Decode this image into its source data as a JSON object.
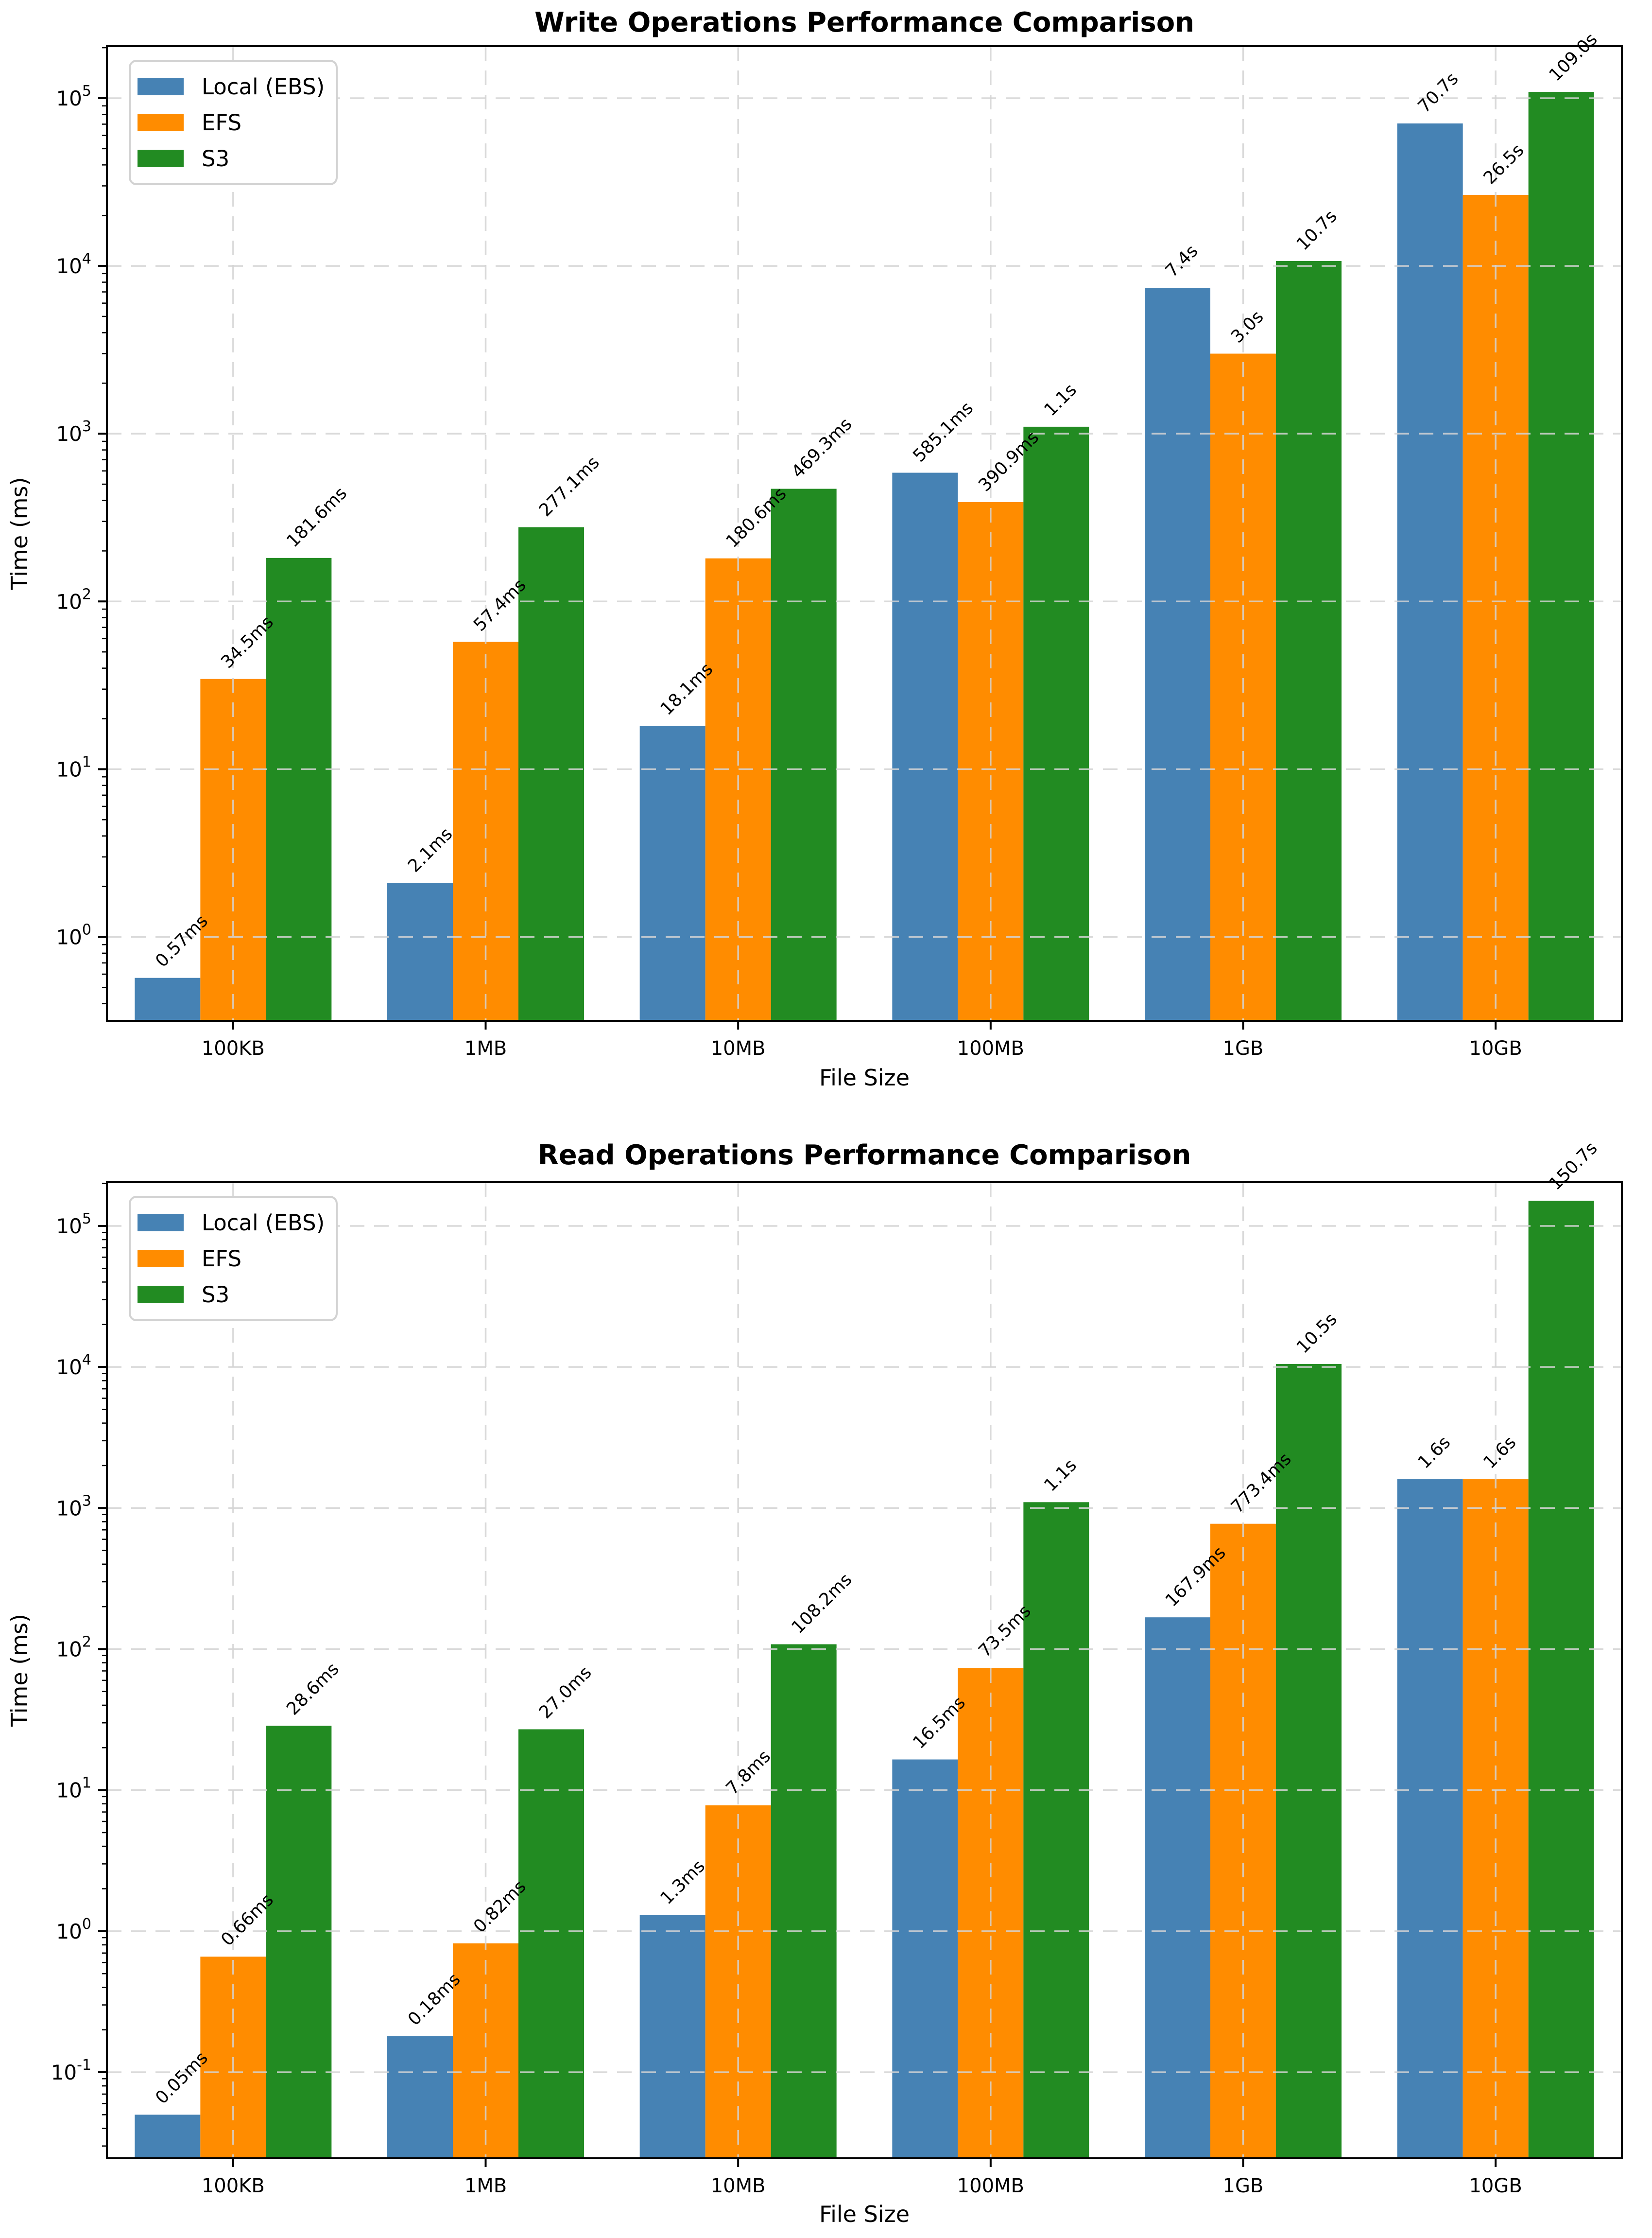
{
  "figure": {
    "background": "#ffffff"
  },
  "chart_data": [
    {
      "type": "bar",
      "title": "Write Operations Performance Comparison",
      "xlabel": "File Size",
      "ylabel": "Time (ms)",
      "yscale": "log",
      "ylim_log10": [
        -0.5,
        5.31
      ],
      "grid": true,
      "legend_position": "upper left",
      "categories": [
        "100KB",
        "1MB",
        "10MB",
        "100MB",
        "1GB",
        "10GB"
      ],
      "y_tick_exponents": [
        0,
        1,
        2,
        3,
        4,
        5
      ],
      "series": [
        {
          "name": "Local (EBS)",
          "color": "#4682B4",
          "values_ms": [
            0.57,
            2.1,
            18.1,
            585.1,
            7400,
            70700
          ],
          "labels": [
            "0.57ms",
            "2.1ms",
            "18.1ms",
            "585.1ms",
            "7.4s",
            "70.7s"
          ]
        },
        {
          "name": "EFS",
          "color": "#FF8C00",
          "values_ms": [
            34.5,
            57.4,
            180.6,
            390.9,
            3000,
            26500
          ],
          "labels": [
            "34.5ms",
            "57.4ms",
            "180.6ms",
            "390.9ms",
            "3.0s",
            "26.5s"
          ]
        },
        {
          "name": "S3",
          "color": "#228B22",
          "values_ms": [
            181.6,
            277.1,
            469.3,
            1100,
            10700,
            109000
          ],
          "labels": [
            "181.6ms",
            "277.1ms",
            "469.3ms",
            "1.1s",
            "10.7s",
            "109.0s"
          ]
        }
      ]
    },
    {
      "type": "bar",
      "title": "Read Operations Performance Comparison",
      "xlabel": "File Size",
      "ylabel": "Time (ms)",
      "yscale": "log",
      "ylim_log10": [
        -1.61,
        5.31
      ],
      "grid": true,
      "legend_position": "upper left",
      "categories": [
        "100KB",
        "1MB",
        "10MB",
        "100MB",
        "1GB",
        "10GB"
      ],
      "y_tick_exponents": [
        -1,
        0,
        1,
        2,
        3,
        4,
        5
      ],
      "series": [
        {
          "name": "Local (EBS)",
          "color": "#4682B4",
          "values_ms": [
            0.05,
            0.18,
            1.3,
            16.5,
            167.9,
            1600
          ],
          "labels": [
            "0.05ms",
            "0.18ms",
            "1.3ms",
            "16.5ms",
            "167.9ms",
            "1.6s"
          ]
        },
        {
          "name": "EFS",
          "color": "#FF8C00",
          "values_ms": [
            0.66,
            0.82,
            7.8,
            73.5,
            773.4,
            1600
          ],
          "labels": [
            "0.66ms",
            "0.82ms",
            "7.8ms",
            "73.5ms",
            "773.4ms",
            "1.6s"
          ]
        },
        {
          "name": "S3",
          "color": "#228B22",
          "values_ms": [
            28.6,
            27.0,
            108.2,
            1100,
            10500,
            150700
          ],
          "labels": [
            "28.6ms",
            "27.0ms",
            "108.2ms",
            "1.1s",
            "10.5s",
            "150.7s"
          ]
        }
      ]
    }
  ]
}
